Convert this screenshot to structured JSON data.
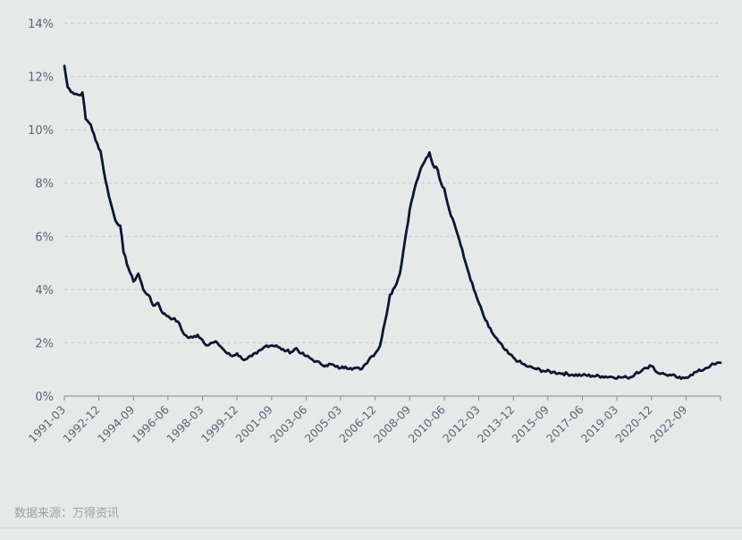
{
  "chart_data": {
    "type": "line",
    "title": "",
    "xlabel": "",
    "ylabel": "",
    "ylim": [
      0,
      14
    ],
    "y_ticks": [
      "0%",
      "2%",
      "4%",
      "6%",
      "8%",
      "10%",
      "12%",
      "14%"
    ],
    "x_range": [
      "1991-03",
      "2024-06"
    ],
    "x_ticks": [
      "1991-03",
      "1992-12",
      "1994-09",
      "1996-06",
      "1998-03",
      "1999-12",
      "2001-09",
      "2003-06",
      "2005-03",
      "2006-12",
      "2008-09",
      "2010-06",
      "2012-03",
      "2013-12",
      "2015-09",
      "2017-06",
      "2019-03",
      "2020-12",
      "2022-09"
    ],
    "grid": true,
    "line_color": "#0d1633",
    "series": [
      {
        "points": [
          [
            "1991-03",
            12.4
          ],
          [
            "1991-05",
            11.6
          ],
          [
            "1991-08",
            11.4
          ],
          [
            "1991-12",
            11.3
          ],
          [
            "1992-02",
            11.4
          ],
          [
            "1992-04",
            10.4
          ],
          [
            "1992-07",
            10.2
          ],
          [
            "1992-10",
            9.6
          ],
          [
            "1993-01",
            9.2
          ],
          [
            "1993-04",
            8.1
          ],
          [
            "1993-07",
            7.3
          ],
          [
            "1993-10",
            6.6
          ],
          [
            "1994-01",
            6.4
          ],
          [
            "1994-03",
            5.4
          ],
          [
            "1994-06",
            4.8
          ],
          [
            "1994-09",
            4.3
          ],
          [
            "1994-12",
            4.6
          ],
          [
            "1995-03",
            4.0
          ],
          [
            "1995-06",
            3.8
          ],
          [
            "1995-09",
            3.4
          ],
          [
            "1995-12",
            3.5
          ],
          [
            "1996-03",
            3.1
          ],
          [
            "1996-06",
            3.0
          ],
          [
            "1996-09",
            2.9
          ],
          [
            "1996-12",
            2.8
          ],
          [
            "1997-03",
            2.4
          ],
          [
            "1997-06",
            2.2
          ],
          [
            "1997-09",
            2.2
          ],
          [
            "1997-12",
            2.3
          ],
          [
            "1998-03",
            2.1
          ],
          [
            "1998-06",
            1.9
          ],
          [
            "1998-09",
            2.0
          ],
          [
            "1998-12",
            2.0
          ],
          [
            "1999-03",
            1.8
          ],
          [
            "1999-06",
            1.6
          ],
          [
            "1999-09",
            1.5
          ],
          [
            "1999-12",
            1.6
          ],
          [
            "2000-03",
            1.4
          ],
          [
            "2000-06",
            1.4
          ],
          [
            "2000-09",
            1.5
          ],
          [
            "2000-12",
            1.6
          ],
          [
            "2001-03",
            1.75
          ],
          [
            "2001-06",
            1.9
          ],
          [
            "2001-09",
            1.9
          ],
          [
            "2001-12",
            1.9
          ],
          [
            "2002-03",
            1.75
          ],
          [
            "2002-06",
            1.7
          ],
          [
            "2002-09",
            1.65
          ],
          [
            "2002-12",
            1.8
          ],
          [
            "2003-03",
            1.6
          ],
          [
            "2003-06",
            1.5
          ],
          [
            "2003-09",
            1.4
          ],
          [
            "2003-12",
            1.3
          ],
          [
            "2004-03",
            1.2
          ],
          [
            "2004-06",
            1.15
          ],
          [
            "2004-09",
            1.2
          ],
          [
            "2004-12",
            1.1
          ],
          [
            "2005-03",
            1.05
          ],
          [
            "2005-06",
            1.1
          ],
          [
            "2005-09",
            1.05
          ],
          [
            "2005-12",
            1.05
          ],
          [
            "2006-03",
            1.0
          ],
          [
            "2006-06",
            1.2
          ],
          [
            "2006-09",
            1.45
          ],
          [
            "2006-12",
            1.6
          ],
          [
            "2007-03",
            1.9
          ],
          [
            "2007-06",
            2.8
          ],
          [
            "2007-09",
            3.8
          ],
          [
            "2007-12",
            4.1
          ],
          [
            "2008-03",
            4.6
          ],
          [
            "2008-06",
            5.8
          ],
          [
            "2008-09",
            7.0
          ],
          [
            "2008-12",
            7.8
          ],
          [
            "2009-03",
            8.4
          ],
          [
            "2009-06",
            8.8
          ],
          [
            "2009-09",
            9.15
          ],
          [
            "2009-11",
            8.7
          ],
          [
            "2010-02",
            8.5
          ],
          [
            "2010-04",
            8.0
          ],
          [
            "2010-06",
            7.8
          ],
          [
            "2010-09",
            7.0
          ],
          [
            "2010-12",
            6.5
          ],
          [
            "2011-03",
            5.9
          ],
          [
            "2011-06",
            5.2
          ],
          [
            "2011-09",
            4.6
          ],
          [
            "2011-12",
            4.0
          ],
          [
            "2012-03",
            3.5
          ],
          [
            "2012-06",
            3.0
          ],
          [
            "2012-09",
            2.6
          ],
          [
            "2012-12",
            2.3
          ],
          [
            "2013-03",
            2.05
          ],
          [
            "2013-06",
            1.8
          ],
          [
            "2013-09",
            1.6
          ],
          [
            "2013-12",
            1.45
          ],
          [
            "2014-03",
            1.3
          ],
          [
            "2014-06",
            1.2
          ],
          [
            "2014-09",
            1.1
          ],
          [
            "2014-12",
            1.05
          ],
          [
            "2015-06",
            0.95
          ],
          [
            "2015-12",
            0.9
          ],
          [
            "2016-06",
            0.85
          ],
          [
            "2016-12",
            0.8
          ],
          [
            "2017-06",
            0.78
          ],
          [
            "2017-12",
            0.76
          ],
          [
            "2018-06",
            0.74
          ],
          [
            "2018-12",
            0.72
          ],
          [
            "2019-06",
            0.7
          ],
          [
            "2019-09",
            0.7
          ],
          [
            "2019-12",
            0.72
          ],
          [
            "2020-03",
            0.9
          ],
          [
            "2020-06",
            0.95
          ],
          [
            "2020-09",
            1.05
          ],
          [
            "2020-11",
            1.15
          ],
          [
            "2021-01",
            1.1
          ],
          [
            "2021-03",
            0.9
          ],
          [
            "2021-06",
            0.85
          ],
          [
            "2021-09",
            0.8
          ],
          [
            "2021-12",
            0.78
          ],
          [
            "2022-03",
            0.72
          ],
          [
            "2022-06",
            0.65
          ],
          [
            "2022-09",
            0.7
          ],
          [
            "2022-12",
            0.8
          ],
          [
            "2023-03",
            0.9
          ],
          [
            "2023-06",
            0.95
          ],
          [
            "2023-09",
            1.05
          ],
          [
            "2023-12",
            1.15
          ],
          [
            "2024-03",
            1.2
          ],
          [
            "2024-06",
            1.25
          ]
        ]
      }
    ]
  },
  "footer": {
    "source": "数据来源：万得资讯"
  }
}
